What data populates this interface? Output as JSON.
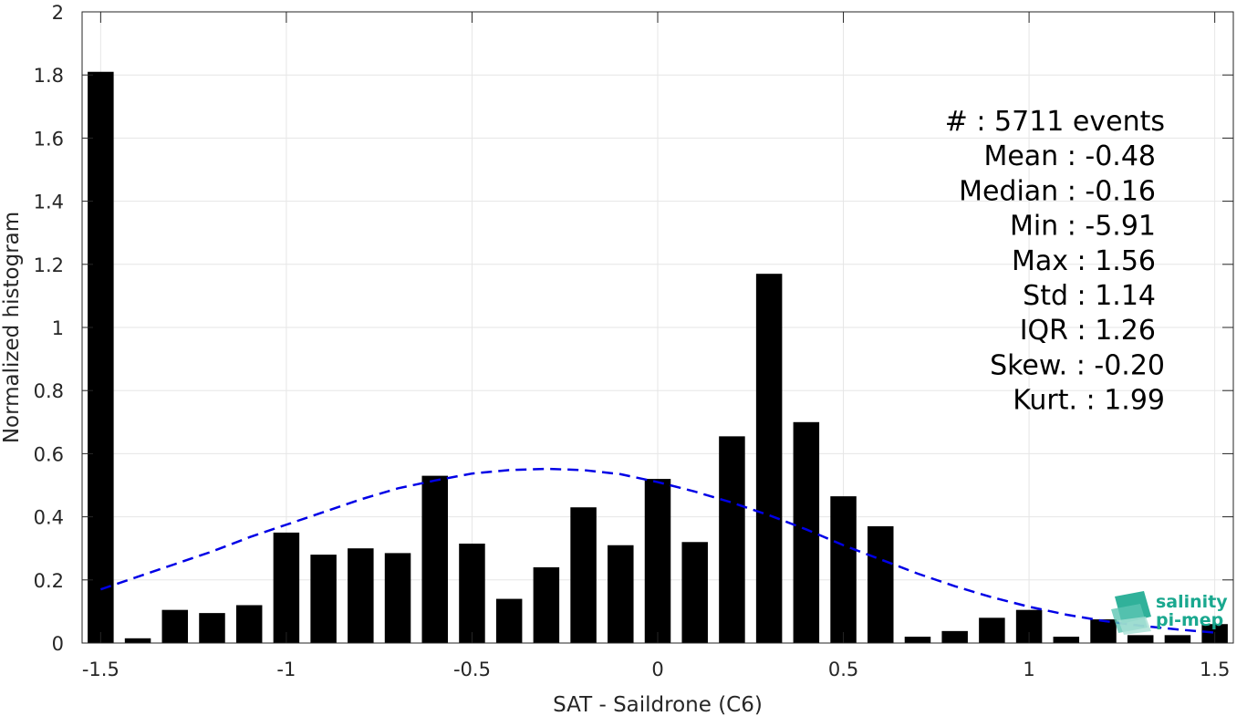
{
  "chart_data": {
    "type": "bar",
    "xlabel": "SAT - Saildrone (C6)",
    "ylabel": "Normalized histogram",
    "xlim": [
      -1.55,
      1.55
    ],
    "ylim": [
      0,
      2
    ],
    "xticks": [
      -1.5,
      -1,
      -0.5,
      0,
      0.5,
      1,
      1.5
    ],
    "xtick_labels": [
      "-1.5",
      "-1",
      "-0.5",
      "0",
      "0.5",
      "1",
      "1.5"
    ],
    "yticks": [
      0,
      0.2,
      0.4,
      0.6,
      0.8,
      1,
      1.2,
      1.4,
      1.6,
      1.8,
      2
    ],
    "ytick_labels": [
      "0",
      "0.2",
      "0.4",
      "0.6",
      "0.8",
      "1",
      "1.2",
      "1.4",
      "1.6",
      "1.8",
      "2"
    ],
    "grid": true,
    "bar_color": "#000000",
    "bar_width": 0.07,
    "bars": {
      "x": [
        -1.5,
        -1.4,
        -1.3,
        -1.2,
        -1.1,
        -1.0,
        -0.9,
        -0.8,
        -0.7,
        -0.6,
        -0.5,
        -0.4,
        -0.3,
        -0.2,
        -0.1,
        0.0,
        0.1,
        0.2,
        0.3,
        0.4,
        0.5,
        0.6,
        0.7,
        0.8,
        0.9,
        1.0,
        1.1,
        1.2,
        1.3,
        1.4,
        1.5
      ],
      "values": [
        1.81,
        0.015,
        0.105,
        0.095,
        0.12,
        0.35,
        0.28,
        0.3,
        0.285,
        0.53,
        0.315,
        0.14,
        0.24,
        0.43,
        0.31,
        0.52,
        0.32,
        0.655,
        1.17,
        0.7,
        0.465,
        0.37,
        0.02,
        0.038,
        0.08,
        0.105,
        0.02,
        0.075,
        0.025,
        0.025,
        0.06
      ]
    },
    "fit_curve": {
      "color": "#0000e6",
      "style": "dashed",
      "x": [
        -1.5,
        -1.4,
        -1.3,
        -1.2,
        -1.1,
        -1.0,
        -0.9,
        -0.8,
        -0.7,
        -0.6,
        -0.5,
        -0.4,
        -0.3,
        -0.2,
        -0.1,
        0.0,
        0.1,
        0.2,
        0.3,
        0.4,
        0.5,
        0.6,
        0.7,
        0.8,
        0.9,
        1.0,
        1.1,
        1.2,
        1.3,
        1.4,
        1.5
      ],
      "y": [
        0.17,
        0.21,
        0.25,
        0.29,
        0.335,
        0.375,
        0.415,
        0.455,
        0.49,
        0.515,
        0.537,
        0.548,
        0.552,
        0.548,
        0.535,
        0.51,
        0.48,
        0.445,
        0.405,
        0.36,
        0.31,
        0.265,
        0.22,
        0.18,
        0.145,
        0.115,
        0.09,
        0.07,
        0.055,
        0.043,
        0.033
      ]
    },
    "stats_lines": [
      "#  : 5711 events",
      "Mean : -0.48",
      "Median : -0.16",
      "Min : -5.91",
      "Max : 1.56",
      "Std : 1.14",
      "IQR : 1.26",
      "Skew. : -0.20",
      "Kurt. : 1.99"
    ],
    "logo": {
      "line1": "salinity",
      "line2": "pi-mep",
      "color": "#1aa88f"
    }
  }
}
